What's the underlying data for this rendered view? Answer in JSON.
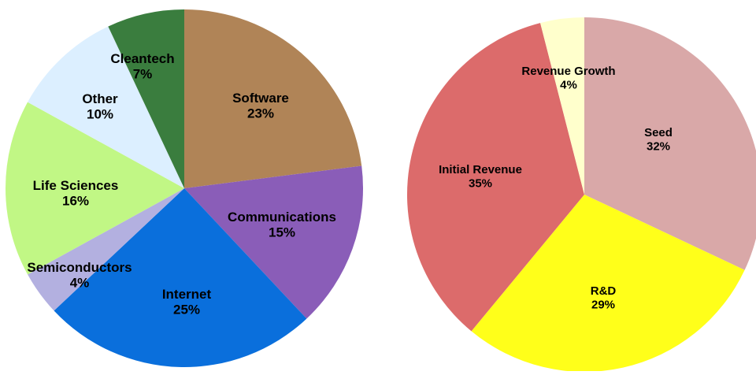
{
  "chart_data": [
    {
      "type": "pie",
      "slices": [
        {
          "label": "Software",
          "value": 23,
          "display": "23%",
          "color": "#b08457"
        },
        {
          "label": "Communications",
          "value": 15,
          "display": "15%",
          "color": "#8a5db8"
        },
        {
          "label": "Internet",
          "value": 25,
          "display": "25%",
          "color": "#0a6fdc"
        },
        {
          "label": "Semiconductors",
          "value": 4,
          "display": "4%",
          "color": "#b3b0e0"
        },
        {
          "label": "Life Sciences",
          "value": 16,
          "display": "16%",
          "color": "#c1f785"
        },
        {
          "label": "Other",
          "value": 10,
          "display": "10%",
          "color": "#dcefff"
        },
        {
          "label": "Cleantech",
          "value": 7,
          "display": "7%",
          "color": "#3a7d3e"
        }
      ]
    },
    {
      "type": "pie",
      "slices": [
        {
          "label": "Seed",
          "value": 32,
          "display": "32%",
          "color": "#d9a8a8"
        },
        {
          "label": "R&D",
          "value": 29,
          "display": "29%",
          "color": "#ffff1a"
        },
        {
          "label": "Initial Revenue",
          "value": 35,
          "display": "35%",
          "color": "#dc6b6b"
        },
        {
          "label": "Revenue Growth",
          "value": 4,
          "display": "4%",
          "color": "#ffffcc"
        }
      ]
    }
  ]
}
